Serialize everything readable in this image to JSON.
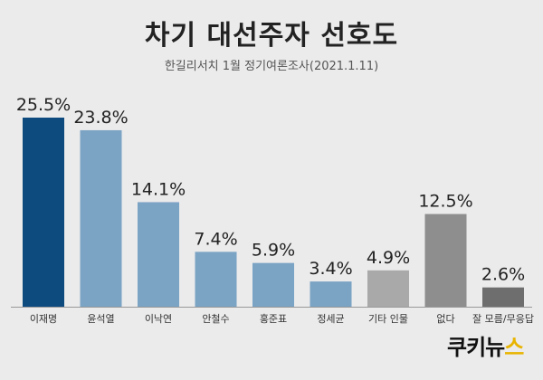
{
  "title": "차기 대선주자 선호도",
  "subtitle": "한길리서치 1월 정기여론조사(2021.1.11)",
  "logo": {
    "main": "쿠키뉴",
    "accent": "스"
  },
  "chart_data": {
    "type": "bar",
    "categories": [
      "이재명",
      "윤석열",
      "이낙연",
      "안철수",
      "홍준표",
      "정세균",
      "기타 인물",
      "없다",
      "잘 모름/무응답"
    ],
    "values": [
      25.5,
      23.8,
      14.1,
      7.4,
      5.9,
      3.4,
      4.9,
      12.5,
      2.6
    ],
    "data_labels": [
      "25.5%",
      "23.8%",
      "14.1%",
      "7.4%",
      "5.9%",
      "3.4%",
      "4.9%",
      "12.5%",
      "2.6%"
    ],
    "colors": [
      "#0d4a7e",
      "#7ba3c4",
      "#7ba3c4",
      "#7ba3c4",
      "#7ba3c4",
      "#7ba3c4",
      "#a9a9a9",
      "#8e8e8e",
      "#6e6e6e"
    ],
    "title": "차기 대선주자 선호도",
    "xlabel": "",
    "ylabel": "",
    "ylim": [
      0,
      25.5
    ],
    "grid": false
  }
}
